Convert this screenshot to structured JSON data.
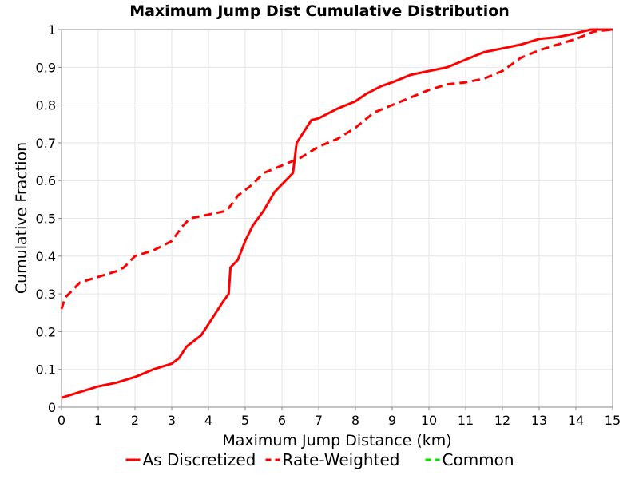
{
  "chart_data": {
    "type": "line",
    "title": "Maximum Jump Dist Cumulative Distribution",
    "xlabel": "Maximum Jump Distance (km)",
    "ylabel": "Cumulative Fraction",
    "xlim": [
      0,
      15
    ],
    "ylim": [
      0,
      1
    ],
    "xticks": [
      0,
      1,
      2,
      3,
      4,
      5,
      6,
      7,
      8,
      9,
      10,
      11,
      12,
      13,
      14,
      15
    ],
    "yticks": [
      0,
      0.1,
      0.2,
      0.3,
      0.4,
      0.5,
      0.6,
      0.7,
      0.8,
      0.9,
      1
    ],
    "xtick_labels": [
      "0",
      "1",
      "2",
      "3",
      "4",
      "5",
      "6",
      "7",
      "8",
      "9",
      "10",
      "11",
      "12",
      "13",
      "14",
      "15"
    ],
    "ytick_labels": [
      "0",
      "0.1",
      "0.2",
      "0.3",
      "0.4",
      "0.5",
      "0.6",
      "0.7",
      "0.8",
      "0.9",
      "1"
    ],
    "grid": true,
    "legend_placement": "bottom",
    "series": [
      {
        "name": "As Discretized",
        "color": "#ff0000",
        "dash": "solid",
        "points": [
          [
            0,
            0.025
          ],
          [
            0.5,
            0.04
          ],
          [
            1,
            0.055
          ],
          [
            1.5,
            0.065
          ],
          [
            2,
            0.08
          ],
          [
            2.5,
            0.1
          ],
          [
            3,
            0.115
          ],
          [
            3.2,
            0.13
          ],
          [
            3.4,
            0.16
          ],
          [
            3.8,
            0.19
          ],
          [
            4,
            0.22
          ],
          [
            4.2,
            0.25
          ],
          [
            4.4,
            0.28
          ],
          [
            4.55,
            0.3
          ],
          [
            4.6,
            0.37
          ],
          [
            4.8,
            0.39
          ],
          [
            5,
            0.44
          ],
          [
            5.2,
            0.48
          ],
          [
            5.5,
            0.52
          ],
          [
            5.8,
            0.57
          ],
          [
            6,
            0.59
          ],
          [
            6.2,
            0.61
          ],
          [
            6.3,
            0.62
          ],
          [
            6.4,
            0.7
          ],
          [
            6.6,
            0.73
          ],
          [
            6.8,
            0.76
          ],
          [
            7,
            0.765
          ],
          [
            7.5,
            0.79
          ],
          [
            8,
            0.81
          ],
          [
            8.3,
            0.83
          ],
          [
            8.7,
            0.85
          ],
          [
            9,
            0.86
          ],
          [
            9.5,
            0.88
          ],
          [
            10,
            0.89
          ],
          [
            10.5,
            0.9
          ],
          [
            11,
            0.92
          ],
          [
            11.5,
            0.94
          ],
          [
            12,
            0.95
          ],
          [
            12.5,
            0.96
          ],
          [
            13,
            0.975
          ],
          [
            13.5,
            0.98
          ],
          [
            14,
            0.99
          ],
          [
            14.4,
            1.0
          ],
          [
            15,
            1.0
          ]
        ]
      },
      {
        "name": "Rate-Weighted",
        "color": "#ff0000",
        "dash": "dashed",
        "points": [
          [
            0,
            0.26
          ],
          [
            0.1,
            0.29
          ],
          [
            0.3,
            0.31
          ],
          [
            0.5,
            0.33
          ],
          [
            1,
            0.345
          ],
          [
            1.5,
            0.36
          ],
          [
            1.7,
            0.37
          ],
          [
            2,
            0.4
          ],
          [
            2.5,
            0.415
          ],
          [
            3,
            0.44
          ],
          [
            3.3,
            0.48
          ],
          [
            3.5,
            0.5
          ],
          [
            4,
            0.51
          ],
          [
            4.5,
            0.52
          ],
          [
            4.8,
            0.56
          ],
          [
            5.2,
            0.59
          ],
          [
            5.5,
            0.62
          ],
          [
            6,
            0.64
          ],
          [
            6.5,
            0.66
          ],
          [
            7,
            0.69
          ],
          [
            7.5,
            0.71
          ],
          [
            8,
            0.74
          ],
          [
            8.5,
            0.78
          ],
          [
            9,
            0.8
          ],
          [
            9.5,
            0.82
          ],
          [
            10,
            0.84
          ],
          [
            10.5,
            0.855
          ],
          [
            11,
            0.86
          ],
          [
            11.5,
            0.87
          ],
          [
            12,
            0.89
          ],
          [
            12.5,
            0.925
          ],
          [
            13,
            0.945
          ],
          [
            13.5,
            0.96
          ],
          [
            14,
            0.975
          ],
          [
            14.5,
            0.995
          ],
          [
            15,
            1.0
          ]
        ]
      },
      {
        "name": "Common",
        "color": "#00e000",
        "dash": "dashed",
        "points": []
      }
    ]
  }
}
